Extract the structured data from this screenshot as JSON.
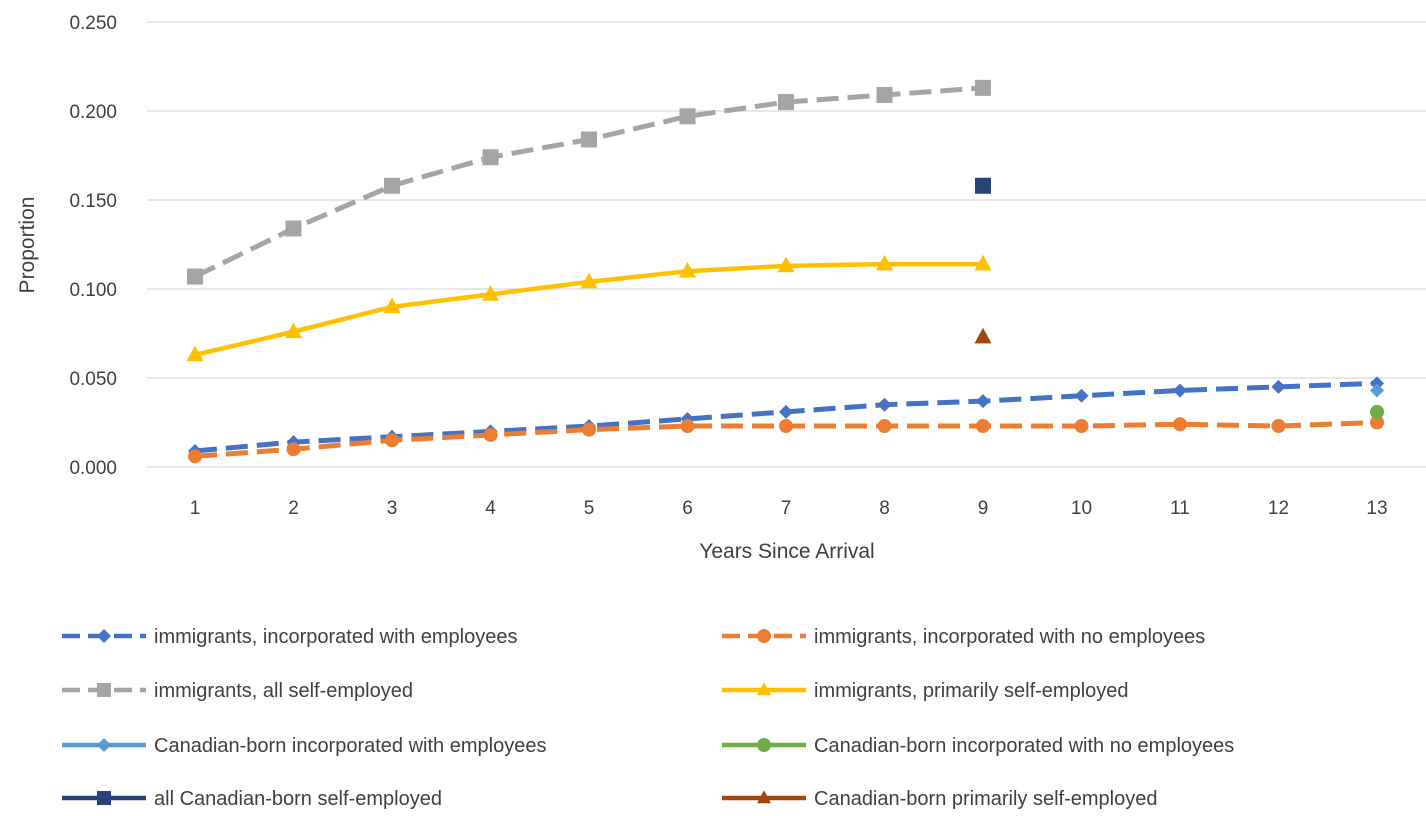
{
  "chart_data": {
    "type": "line",
    "title": "",
    "xlabel": "Years Since Arrival",
    "ylabel": "Proportion",
    "ylim": [
      0,
      0.25
    ],
    "yticks": [
      "0.000",
      "0.050",
      "0.100",
      "0.150",
      "0.200",
      "0.250"
    ],
    "x": [
      1,
      2,
      3,
      4,
      5,
      6,
      7,
      8,
      9,
      10,
      11,
      12,
      13
    ],
    "grid": "horizontal",
    "legend_position": "bottom",
    "series": [
      {
        "name": "immigrants, incorporated with employees",
        "color": "#4472C4",
        "dash": "dashed",
        "marker": "diamond",
        "x": [
          1,
          2,
          3,
          4,
          5,
          6,
          7,
          8,
          9,
          10,
          11,
          12,
          13
        ],
        "values": [
          0.009,
          0.014,
          0.017,
          0.02,
          0.023,
          0.027,
          0.031,
          0.035,
          0.037,
          0.04,
          0.043,
          0.045,
          0.047
        ]
      },
      {
        "name": "immigrants, incorporated with no employees",
        "color": "#ED7D31",
        "dash": "dashed",
        "marker": "circle",
        "x": [
          1,
          2,
          3,
          4,
          5,
          6,
          7,
          8,
          9,
          10,
          11,
          12,
          13
        ],
        "values": [
          0.006,
          0.01,
          0.015,
          0.018,
          0.021,
          0.023,
          0.023,
          0.023,
          0.023,
          0.023,
          0.024,
          0.023,
          0.025
        ]
      },
      {
        "name": "immigrants, all self-employed",
        "color": "#A5A5A5",
        "dash": "dashed",
        "marker": "square",
        "x": [
          1,
          2,
          3,
          4,
          5,
          6,
          7,
          8,
          9
        ],
        "values": [
          0.107,
          0.134,
          0.158,
          0.174,
          0.184,
          0.197,
          0.205,
          0.209,
          0.213
        ]
      },
      {
        "name": "immigrants, primarily self-employed",
        "color": "#FFC000",
        "dash": "solid",
        "marker": "triangle",
        "x": [
          1,
          2,
          3,
          4,
          5,
          6,
          7,
          8,
          9
        ],
        "values": [
          0.063,
          0.076,
          0.09,
          0.097,
          0.104,
          0.11,
          0.113,
          0.114,
          0.114
        ]
      },
      {
        "name": "Canadian-born incorporated with employees",
        "color": "#5B9BD5",
        "dash": "solid",
        "marker": "diamond",
        "x": [
          13
        ],
        "values": [
          0.043
        ]
      },
      {
        "name": "Canadian-born incorporated with no employees",
        "color": "#70AD47",
        "dash": "solid",
        "marker": "circle",
        "x": [
          13
        ],
        "values": [
          0.031
        ]
      },
      {
        "name": "all Canadian-born self-employed",
        "color": "#264478",
        "dash": "solid",
        "marker": "square",
        "x": [
          9
        ],
        "values": [
          0.158
        ]
      },
      {
        "name": "Canadian-born primarily self-employed",
        "color": "#9E480E",
        "dash": "solid",
        "marker": "triangle",
        "x": [
          9
        ],
        "values": [
          0.073
        ]
      }
    ]
  }
}
